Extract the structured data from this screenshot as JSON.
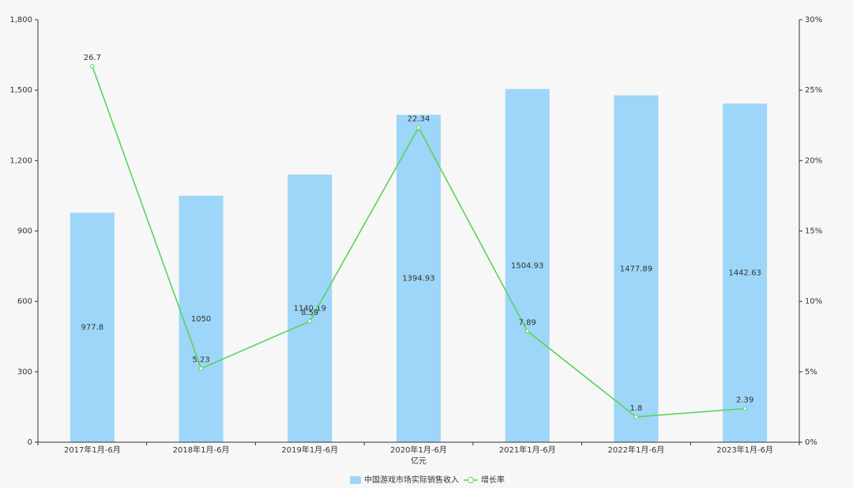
{
  "chart_data": {
    "type": "bar-line",
    "categories": [
      "2017年1月-6月",
      "2018年1月-6月",
      "2019年1月-6月",
      "2020年1月-6月",
      "2021年1月-6月",
      "2022年1月-6月",
      "2023年1月-6月"
    ],
    "x_label": "亿元",
    "series": [
      {
        "name": "中国游戏市场实际销售收入",
        "type": "bar",
        "color": "#9dd6f8",
        "values": [
          977.8,
          1050,
          1140.19,
          1394.93,
          1504.93,
          1477.89,
          1442.63
        ]
      },
      {
        "name": "增长率",
        "type": "line",
        "axis": "y2",
        "color": "#5ad35a",
        "values": [
          26.7,
          5.23,
          8.59,
          22.34,
          7.89,
          1.8,
          2.39
        ]
      }
    ],
    "ylim": [
      0,
      1800
    ],
    "yticks": [
      0,
      300,
      600,
      900,
      {
        "value": 1200,
        "label": "1,200"
      },
      {
        "value": 1500,
        "label": "1,500"
      },
      {
        "value": 1800,
        "label": "1,800"
      }
    ],
    "y2lim": [
      0,
      30
    ],
    "y2ticks": [
      {
        "value": 0,
        "label": "0%"
      },
      {
        "value": 5,
        "label": "5%"
      },
      {
        "value": 10,
        "label": "10%"
      },
      {
        "value": 15,
        "label": "15%"
      },
      {
        "value": 20,
        "label": "20%"
      },
      {
        "value": 25,
        "label": "25%"
      },
      {
        "value": 30,
        "label": "30%"
      }
    ]
  }
}
